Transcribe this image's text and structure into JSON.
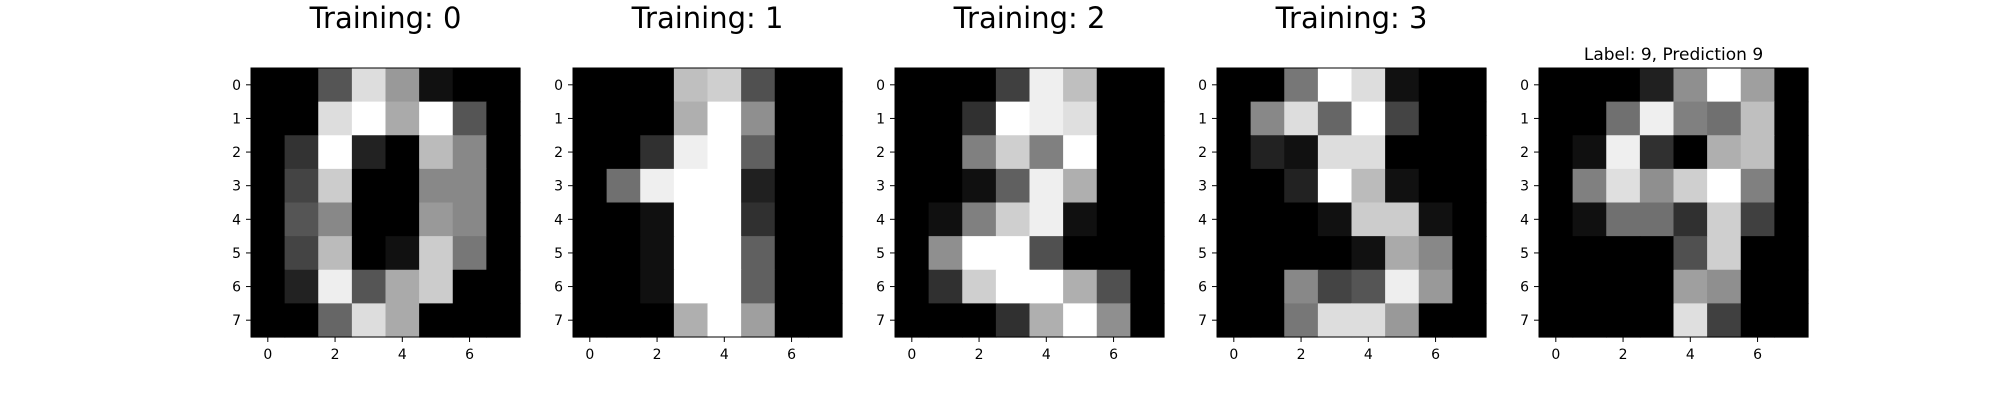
{
  "chart_data": [
    {
      "type": "heatmap",
      "title": "Training: 0",
      "colormap": "gray",
      "xticks": [
        0,
        2,
        4,
        6
      ],
      "yticks": [
        0,
        1,
        2,
        3,
        4,
        5,
        6,
        7
      ],
      "values": [
        [
          0,
          0,
          5,
          13,
          9,
          1,
          0,
          0
        ],
        [
          0,
          0,
          13,
          15,
          10,
          15,
          5,
          0
        ],
        [
          0,
          3,
          15,
          2,
          0,
          11,
          8,
          0
        ],
        [
          0,
          4,
          12,
          0,
          0,
          8,
          8,
          0
        ],
        [
          0,
          5,
          8,
          0,
          0,
          9,
          8,
          0
        ],
        [
          0,
          4,
          11,
          0,
          1,
          12,
          7,
          0
        ],
        [
          0,
          2,
          14,
          5,
          10,
          12,
          0,
          0
        ],
        [
          0,
          0,
          6,
          13,
          10,
          0,
          0,
          0
        ]
      ]
    },
    {
      "type": "heatmap",
      "title": "Training: 1",
      "colormap": "gray",
      "xticks": [
        0,
        2,
        4,
        6
      ],
      "yticks": [
        0,
        1,
        2,
        3,
        4,
        5,
        6,
        7
      ],
      "values": [
        [
          0,
          0,
          0,
          12,
          13,
          5,
          0,
          0
        ],
        [
          0,
          0,
          0,
          11,
          16,
          9,
          0,
          0
        ],
        [
          0,
          0,
          3,
          15,
          16,
          6,
          0,
          0
        ],
        [
          0,
          7,
          15,
          16,
          16,
          2,
          0,
          0
        ],
        [
          0,
          0,
          1,
          16,
          16,
          3,
          0,
          0
        ],
        [
          0,
          0,
          1,
          16,
          16,
          6,
          0,
          0
        ],
        [
          0,
          0,
          1,
          16,
          16,
          6,
          0,
          0
        ],
        [
          0,
          0,
          0,
          11,
          16,
          10,
          0,
          0
        ]
      ]
    },
    {
      "type": "heatmap",
      "title": "Training: 2",
      "colormap": "gray",
      "xticks": [
        0,
        2,
        4,
        6
      ],
      "yticks": [
        0,
        1,
        2,
        3,
        4,
        5,
        6,
        7
      ],
      "values": [
        [
          0,
          0,
          0,
          4,
          15,
          12,
          0,
          0
        ],
        [
          0,
          0,
          3,
          16,
          15,
          14,
          0,
          0
        ],
        [
          0,
          0,
          8,
          13,
          8,
          16,
          0,
          0
        ],
        [
          0,
          0,
          1,
          6,
          15,
          11,
          0,
          0
        ],
        [
          0,
          1,
          8,
          13,
          15,
          1,
          0,
          0
        ],
        [
          0,
          9,
          16,
          16,
          5,
          0,
          0,
          0
        ],
        [
          0,
          3,
          13,
          16,
          16,
          11,
          5,
          0
        ],
        [
          0,
          0,
          0,
          3,
          11,
          16,
          9,
          0
        ]
      ]
    },
    {
      "type": "heatmap",
      "title": "Training: 3",
      "colormap": "gray",
      "xticks": [
        0,
        2,
        4,
        6
      ],
      "yticks": [
        0,
        1,
        2,
        3,
        4,
        5,
        6,
        7
      ],
      "values": [
        [
          0,
          0,
          7,
          15,
          13,
          1,
          0,
          0
        ],
        [
          0,
          8,
          13,
          6,
          15,
          4,
          0,
          0
        ],
        [
          0,
          2,
          1,
          13,
          13,
          0,
          0,
          0
        ],
        [
          0,
          0,
          2,
          15,
          11,
          1,
          0,
          0
        ],
        [
          0,
          0,
          0,
          1,
          12,
          12,
          1,
          0
        ],
        [
          0,
          0,
          0,
          0,
          1,
          10,
          8,
          0
        ],
        [
          0,
          0,
          8,
          4,
          5,
          14,
          9,
          0
        ],
        [
          0,
          0,
          7,
          13,
          13,
          9,
          0,
          0
        ]
      ]
    },
    {
      "type": "heatmap",
      "title": "Label: 9, Prediction 9",
      "colormap": "gray",
      "xticks": [
        0,
        2,
        4,
        6
      ],
      "yticks": [
        0,
        1,
        2,
        3,
        4,
        5,
        6,
        7
      ],
      "values": [
        [
          0,
          0,
          0,
          2,
          9,
          16,
          10,
          0
        ],
        [
          0,
          0,
          7,
          15,
          8,
          7,
          12,
          0
        ],
        [
          0,
          1,
          15,
          3,
          0,
          11,
          12,
          0
        ],
        [
          0,
          8,
          14,
          9,
          13,
          16,
          8,
          0
        ],
        [
          0,
          1,
          7,
          7,
          3,
          13,
          4,
          0
        ],
        [
          0,
          0,
          0,
          0,
          5,
          13,
          0,
          0
        ],
        [
          0,
          0,
          0,
          0,
          10,
          9,
          0,
          0
        ],
        [
          0,
          0,
          0,
          0,
          14,
          4,
          0,
          0
        ]
      ]
    }
  ]
}
